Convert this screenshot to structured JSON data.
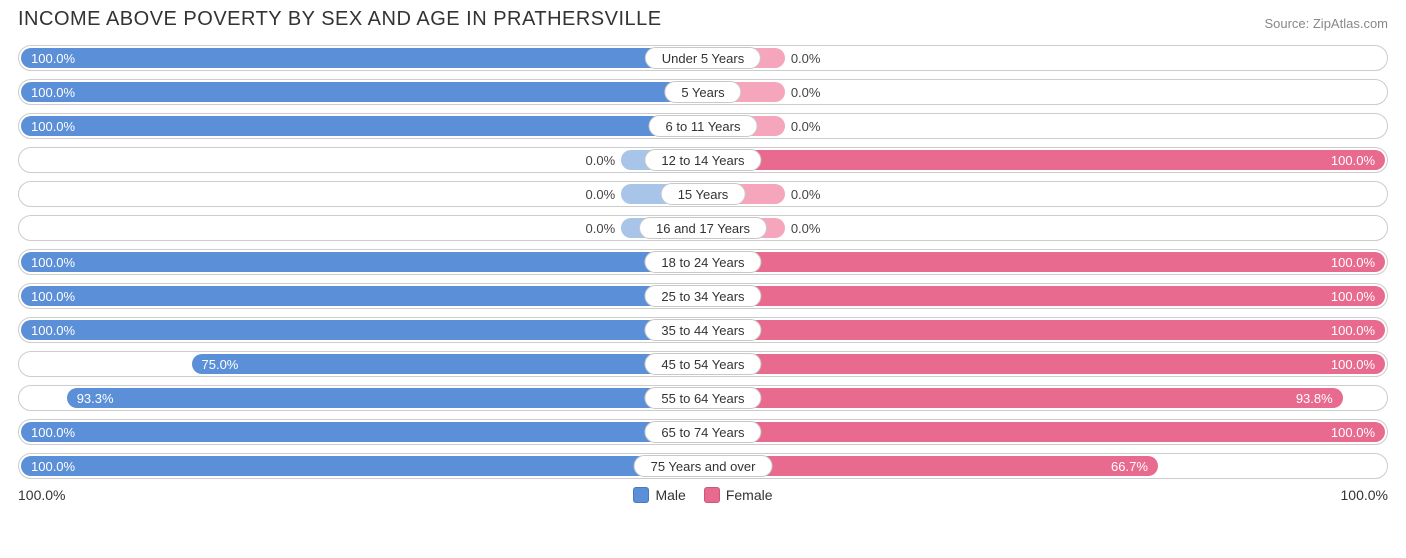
{
  "title": "INCOME ABOVE POVERTY BY SEX AND AGE IN PRATHERSVILLE",
  "source": "Source: ZipAtlas.com",
  "colors": {
    "male_fill": "#5b8fd7",
    "male_fill_zero": "#a8c4e8",
    "female_fill": "#e86a8f",
    "female_fill_zero": "#f5a6bd",
    "row_border": "#cccccc",
    "pill_border": "#c8c8c8",
    "text": "#333333",
    "outlabel_text": "#444444",
    "background": "#ffffff"
  },
  "axis": {
    "left_label": "100.0%",
    "right_label": "100.0%",
    "max": 100.0
  },
  "bar_min_pct_width": 12,
  "legend": {
    "male": "Male",
    "female": "Female"
  },
  "rows": [
    {
      "age": "Under 5 Years",
      "male": 100.0,
      "male_label": "100.0%",
      "female": 0.0,
      "female_label": "0.0%"
    },
    {
      "age": "5 Years",
      "male": 100.0,
      "male_label": "100.0%",
      "female": 0.0,
      "female_label": "0.0%"
    },
    {
      "age": "6 to 11 Years",
      "male": 100.0,
      "male_label": "100.0%",
      "female": 0.0,
      "female_label": "0.0%"
    },
    {
      "age": "12 to 14 Years",
      "male": 0.0,
      "male_label": "0.0%",
      "female": 100.0,
      "female_label": "100.0%"
    },
    {
      "age": "15 Years",
      "male": 0.0,
      "male_label": "0.0%",
      "female": 0.0,
      "female_label": "0.0%"
    },
    {
      "age": "16 and 17 Years",
      "male": 0.0,
      "male_label": "0.0%",
      "female": 0.0,
      "female_label": "0.0%"
    },
    {
      "age": "18 to 24 Years",
      "male": 100.0,
      "male_label": "100.0%",
      "female": 100.0,
      "female_label": "100.0%"
    },
    {
      "age": "25 to 34 Years",
      "male": 100.0,
      "male_label": "100.0%",
      "female": 100.0,
      "female_label": "100.0%"
    },
    {
      "age": "35 to 44 Years",
      "male": 100.0,
      "male_label": "100.0%",
      "female": 100.0,
      "female_label": "100.0%"
    },
    {
      "age": "45 to 54 Years",
      "male": 75.0,
      "male_label": "75.0%",
      "female": 100.0,
      "female_label": "100.0%"
    },
    {
      "age": "55 to 64 Years",
      "male": 93.3,
      "male_label": "93.3%",
      "female": 93.8,
      "female_label": "93.8%"
    },
    {
      "age": "65 to 74 Years",
      "male": 100.0,
      "male_label": "100.0%",
      "female": 100.0,
      "female_label": "100.0%"
    },
    {
      "age": "75 Years and over",
      "male": 100.0,
      "male_label": "100.0%",
      "female": 66.7,
      "female_label": "66.7%"
    }
  ]
}
